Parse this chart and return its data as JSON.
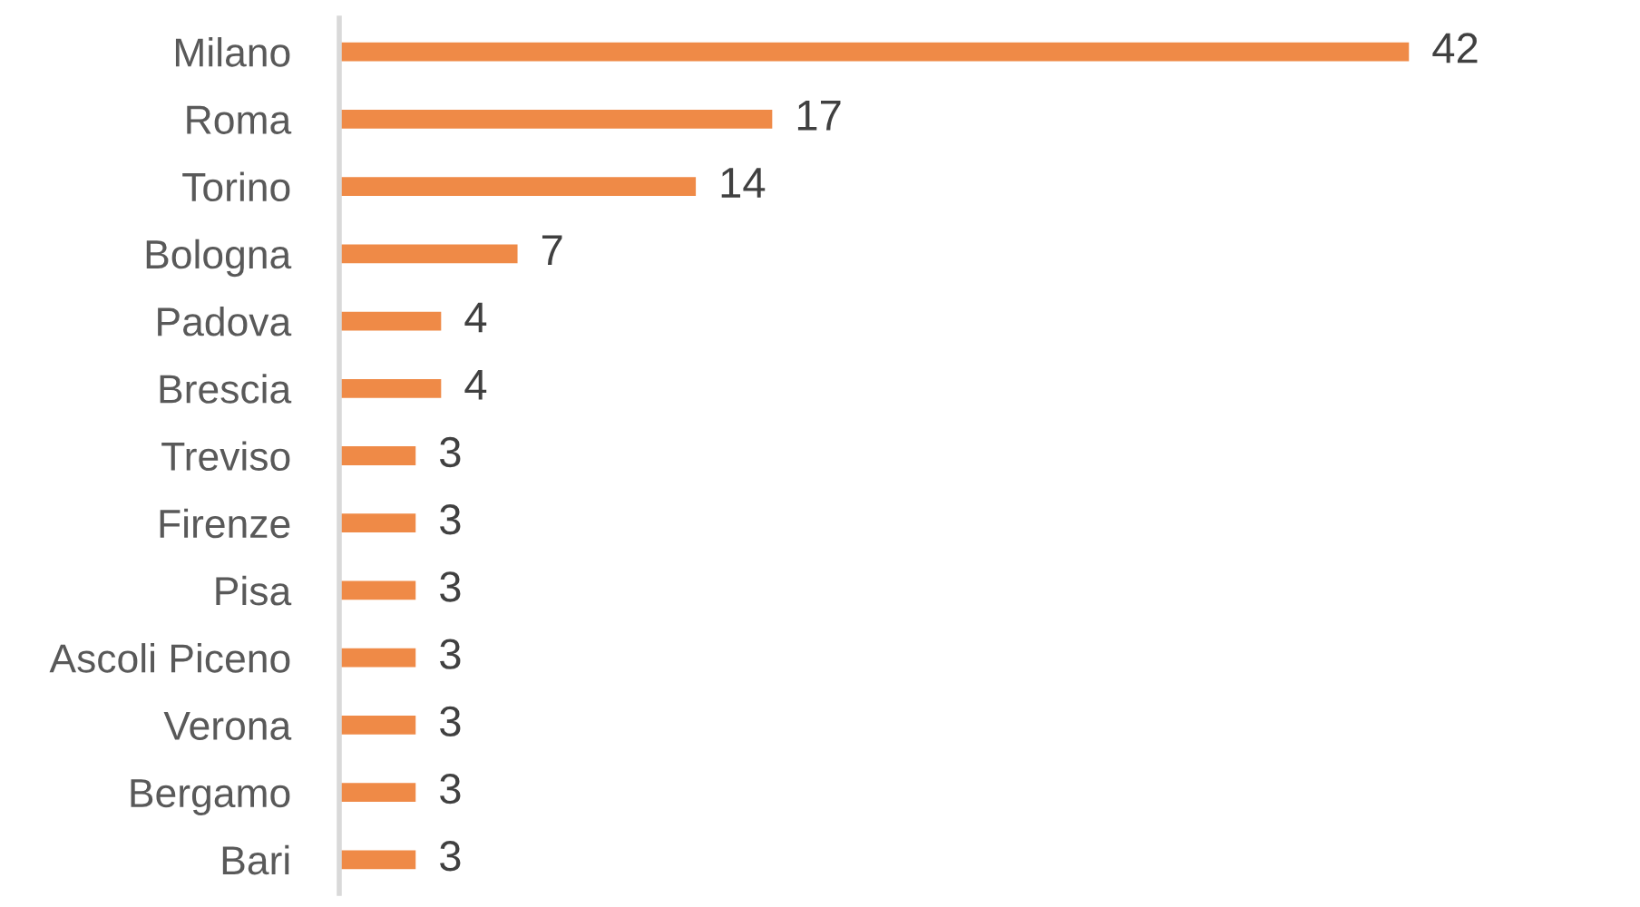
{
  "chart_data": {
    "type": "bar",
    "orientation": "horizontal",
    "categories": [
      "Milano",
      "Roma",
      "Torino",
      "Bologna",
      "Padova",
      "Brescia",
      "Treviso",
      "Firenze",
      "Pisa",
      "Ascoli Piceno",
      "Verona",
      "Bergamo",
      "Bari"
    ],
    "values": [
      42,
      17,
      14,
      7,
      4,
      4,
      3,
      3,
      3,
      3,
      3,
      3,
      3
    ],
    "color": "#ef8a47",
    "data_labels": true,
    "tick_labels": "y"
  }
}
